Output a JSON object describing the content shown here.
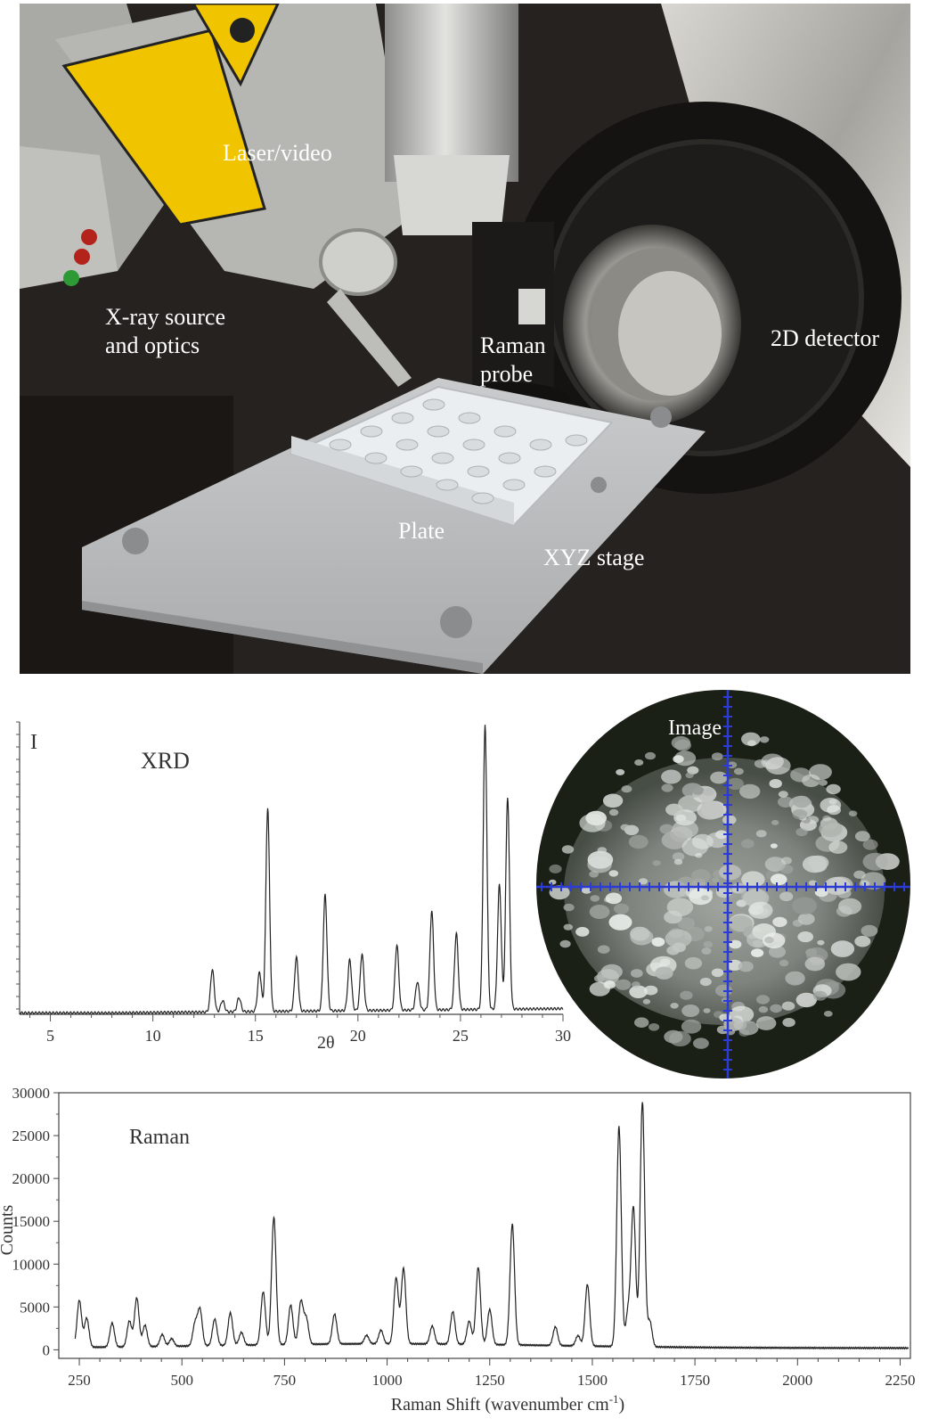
{
  "photo": {
    "labels": {
      "laser": "Laser/video",
      "xray_line1": "X-ray source",
      "xray_line2": "and optics",
      "raman_line1": "Raman",
      "raman_line2": "probe",
      "detector": "2D detector",
      "plate": "Plate",
      "stage": "XYZ stage"
    },
    "colors": {
      "background": "#2a2622",
      "metal": "#b9b9b6",
      "warning_yellow": "#f2c200",
      "stage": "#c4c6c8"
    }
  },
  "micrograph": {
    "label": "Image",
    "crosshair_color": "#2c3bd6",
    "background": "#1c2118"
  },
  "chart_data": [
    {
      "type": "line",
      "title": "XRD",
      "xlabel": "2θ",
      "ylabel": "I",
      "xlim": [
        3.5,
        30
      ],
      "x_ticks": [
        5,
        10,
        15,
        20,
        25,
        30
      ],
      "grid": false,
      "peaks": [
        {
          "x": 12.9,
          "y": 0.15
        },
        {
          "x": 13.4,
          "y": 0.04
        },
        {
          "x": 14.2,
          "y": 0.05
        },
        {
          "x": 15.2,
          "y": 0.14
        },
        {
          "x": 15.6,
          "y": 0.72
        },
        {
          "x": 17.0,
          "y": 0.19
        },
        {
          "x": 18.4,
          "y": 0.41
        },
        {
          "x": 19.6,
          "y": 0.18
        },
        {
          "x": 20.2,
          "y": 0.2
        },
        {
          "x": 21.9,
          "y": 0.23
        },
        {
          "x": 22.9,
          "y": 0.1
        },
        {
          "x": 23.6,
          "y": 0.35
        },
        {
          "x": 24.8,
          "y": 0.27
        },
        {
          "x": 26.2,
          "y": 1.0
        },
        {
          "x": 26.9,
          "y": 0.44
        },
        {
          "x": 27.3,
          "y": 0.75
        }
      ]
    },
    {
      "type": "line",
      "title": "Raman",
      "xlabel": "Raman Shift (wavenumber cm",
      "xlabel_sup": "-1",
      "xlabel_close": ")",
      "ylabel": "Counts",
      "xlim": [
        200,
        2275
      ],
      "ylim": [
        -1000,
        30000
      ],
      "x_ticks": [
        250,
        500,
        750,
        1000,
        1250,
        1500,
        1750,
        2000,
        2250
      ],
      "y_ticks": [
        0,
        5000,
        10000,
        15000,
        20000,
        25000,
        30000
      ],
      "grid": false,
      "peaks": [
        {
          "x": 250,
          "y": 5500
        },
        {
          "x": 268,
          "y": 3400
        },
        {
          "x": 330,
          "y": 2800
        },
        {
          "x": 372,
          "y": 3000
        },
        {
          "x": 390,
          "y": 5700
        },
        {
          "x": 410,
          "y": 2500
        },
        {
          "x": 452,
          "y": 1400
        },
        {
          "x": 475,
          "y": 900
        },
        {
          "x": 532,
          "y": 2600
        },
        {
          "x": 544,
          "y": 4200
        },
        {
          "x": 580,
          "y": 3100
        },
        {
          "x": 618,
          "y": 3800
        },
        {
          "x": 645,
          "y": 1500
        },
        {
          "x": 698,
          "y": 6200
        },
        {
          "x": 724,
          "y": 14900
        },
        {
          "x": 765,
          "y": 4600
        },
        {
          "x": 790,
          "y": 5000
        },
        {
          "x": 803,
          "y": 3000
        },
        {
          "x": 872,
          "y": 3500
        },
        {
          "x": 950,
          "y": 1000
        },
        {
          "x": 985,
          "y": 1600
        },
        {
          "x": 1022,
          "y": 7700
        },
        {
          "x": 1040,
          "y": 8800
        },
        {
          "x": 1110,
          "y": 2100
        },
        {
          "x": 1160,
          "y": 3800
        },
        {
          "x": 1200,
          "y": 2700
        },
        {
          "x": 1222,
          "y": 9000
        },
        {
          "x": 1250,
          "y": 4100
        },
        {
          "x": 1305,
          "y": 14100
        },
        {
          "x": 1410,
          "y": 2200
        },
        {
          "x": 1465,
          "y": 1200
        },
        {
          "x": 1488,
          "y": 7200
        },
        {
          "x": 1565,
          "y": 25700
        },
        {
          "x": 1587,
          "y": 4000
        },
        {
          "x": 1600,
          "y": 16200
        },
        {
          "x": 1622,
          "y": 28600
        },
        {
          "x": 1640,
          "y": 3000
        }
      ]
    }
  ]
}
